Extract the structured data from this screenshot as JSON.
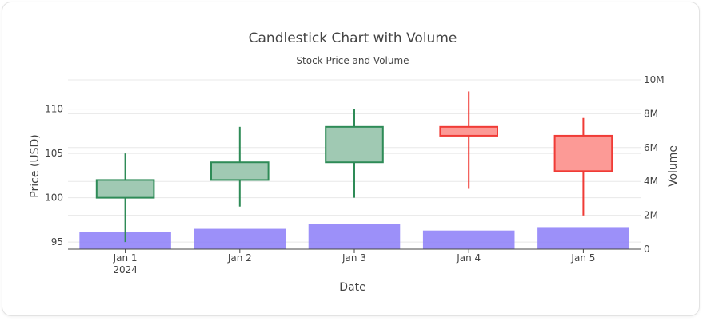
{
  "chart_data": {
    "type": "candlestick",
    "title": "Candlestick Chart with Volume",
    "subtitle": "Stock Price and Volume",
    "xlabel": "Date",
    "ylabel": "Price (USD)",
    "y2label": "Volume",
    "x_year_label": "2024",
    "categories": [
      "Jan 1",
      "Jan 2",
      "Jan 3",
      "Jan 4",
      "Jan 5"
    ],
    "ohlc": [
      {
        "date": "Jan 1",
        "open": 100,
        "high": 105,
        "low": 95,
        "close": 102
      },
      {
        "date": "Jan 2",
        "open": 102,
        "high": 108,
        "low": 99,
        "close": 104
      },
      {
        "date": "Jan 3",
        "open": 104,
        "high": 110,
        "low": 100,
        "close": 108
      },
      {
        "date": "Jan 4",
        "open": 108,
        "high": 112,
        "low": 101,
        "close": 107
      },
      {
        "date": "Jan 5",
        "open": 107,
        "high": 109,
        "low": 98,
        "close": 103
      }
    ],
    "volume": [
      1000000,
      1200000,
      1500000,
      1100000,
      1300000
    ],
    "ylim": [
      94.2,
      113.3
    ],
    "yticks": [
      95,
      100,
      105,
      110
    ],
    "y2lim": [
      0,
      10000000
    ],
    "y2ticks": [
      0,
      2000000,
      4000000,
      6000000,
      8000000,
      10000000
    ],
    "y2ticklabels": [
      "0",
      "2M",
      "4M",
      "6M",
      "8M",
      "10M"
    ],
    "increasing_color": "#2e8b57",
    "increasing_fill": "#a0c9b3",
    "decreasing_color": "#f03b36",
    "decreasing_fill": "#fc9a96",
    "volume_color": "#8b7cf8",
    "grid": true,
    "legend": "none"
  }
}
